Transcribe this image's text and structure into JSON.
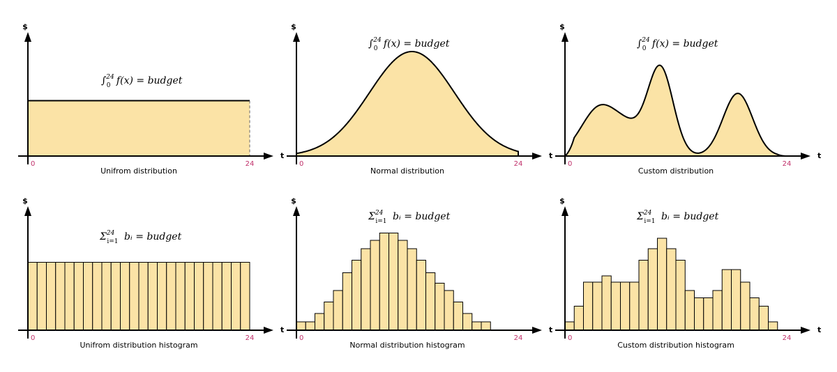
{
  "panels": [
    {
      "id": "uniform-curve",
      "caption": "Unifrom distribution",
      "formula": {
        "sym": "∫",
        "sub": "0",
        "sup": "24",
        "body": "f(x) = budget"
      },
      "y_label": "$",
      "x_label": "t",
      "x_min_label": "0",
      "x_max_label": "24"
    },
    {
      "id": "normal-curve",
      "caption": "Normal distribution",
      "formula": {
        "sym": "∫",
        "sub": "0",
        "sup": "24",
        "body": "f(x) = budget"
      },
      "y_label": "$",
      "x_label": "t",
      "x_min_label": "0",
      "x_max_label": "24"
    },
    {
      "id": "custom-curve",
      "caption": "Custom distribution",
      "formula": {
        "sym": "∫",
        "sub": "0",
        "sup": "24",
        "body": "f(x) = budget"
      },
      "y_label": "$",
      "x_label": "t",
      "x_min_label": "0",
      "x_max_label": "24"
    },
    {
      "id": "uniform-hist",
      "caption": "Unifrom distribution histogram",
      "formula": {
        "sym": "Σ",
        "sub": "i=1",
        "sup": "24",
        "body": "bᵢ = budget"
      },
      "y_label": "$",
      "x_label": "t",
      "x_min_label": "0",
      "x_max_label": "24"
    },
    {
      "id": "normal-hist",
      "caption": "Normal distribution histogram",
      "formula": {
        "sym": "Σ",
        "sub": "i=1",
        "sup": "24",
        "body": "bᵢ = budget"
      },
      "y_label": "$",
      "x_label": "t",
      "x_min_label": "0",
      "x_max_label": "24"
    },
    {
      "id": "custom-hist",
      "caption": "Custom distribution histogram",
      "formula": {
        "sym": "Σ",
        "sub": "i=1",
        "sup": "24",
        "body": "bᵢ = budget"
      },
      "y_label": "$",
      "x_label": "t",
      "x_min_label": "0",
      "x_max_label": "24"
    }
  ],
  "histograms": {
    "uniform": [
      0.65,
      0.65,
      0.65,
      0.65,
      0.65,
      0.65,
      0.65,
      0.65,
      0.65,
      0.65,
      0.65,
      0.65,
      0.65,
      0.65,
      0.65,
      0.65,
      0.65,
      0.65,
      0.65,
      0.65,
      0.65,
      0.65,
      0.65,
      0.65
    ],
    "normal": [
      0.08,
      0.08,
      0.16,
      0.27,
      0.38,
      0.55,
      0.67,
      0.78,
      0.86,
      0.93,
      0.93,
      0.86,
      0.78,
      0.67,
      0.55,
      0.45,
      0.38,
      0.27,
      0.16,
      0.08,
      0.08,
      0,
      0,
      0
    ],
    "custom": [
      0.08,
      0.23,
      0.46,
      0.46,
      0.52,
      0.46,
      0.46,
      0.46,
      0.67,
      0.78,
      0.88,
      0.78,
      0.67,
      0.38,
      0.31,
      0.31,
      0.38,
      0.58,
      0.58,
      0.46,
      0.31,
      0.23,
      0.08,
      0
    ]
  },
  "colors": {
    "fill": "#fbe3a6",
    "tick": "#c0306a"
  }
}
